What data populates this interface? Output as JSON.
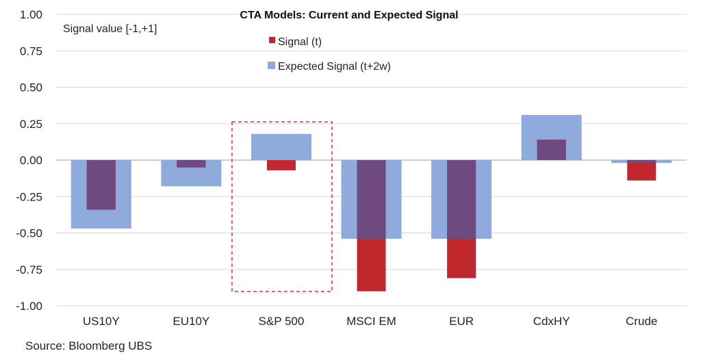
{
  "chart_data": {
    "type": "bar",
    "title": "CTA Models: Current and Expected Signal",
    "ylabel": "Signal value [-1,+1]",
    "ylim": [
      -1.0,
      1.0
    ],
    "yticks": [
      "1.00",
      "0.75",
      "0.50",
      "0.25",
      "0.00",
      "-0.25",
      "-0.50",
      "-0.75",
      "-1.00"
    ],
    "ytick_values": [
      1.0,
      0.75,
      0.5,
      0.25,
      0.0,
      -0.25,
      -0.5,
      -0.75,
      -1.0
    ],
    "categories": [
      "US10Y",
      "EU10Y",
      "S&P 500",
      "MSCI EM",
      "EUR",
      "CdxHY",
      "Crude"
    ],
    "series": [
      {
        "name": "Signal (t)",
        "color": "#c0282d",
        "values": [
          -0.34,
          -0.05,
          -0.07,
          -0.9,
          -0.81,
          0.14,
          -0.14
        ]
      },
      {
        "name": "Expected Signal (t+2w)",
        "color": "#8faadc",
        "values": [
          -0.47,
          -0.18,
          0.18,
          -0.54,
          -0.54,
          0.31,
          -0.02
        ]
      }
    ],
    "overlap_color": "#6e4a7e",
    "highlight_category": "S&P 500",
    "grid": true,
    "legend_position": "top-center"
  },
  "source": "Source: Bloomberg UBS"
}
